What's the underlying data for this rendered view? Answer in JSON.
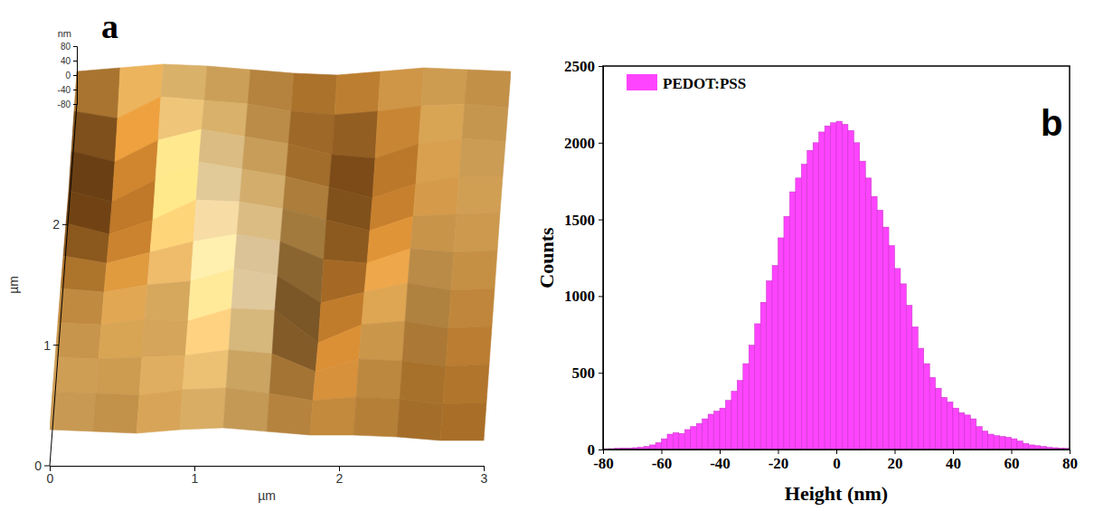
{
  "chart_data": [
    {
      "type": "surface",
      "panel": "a",
      "x_label": "µm",
      "y_label": "µm",
      "z_label": "nm",
      "x": [
        0,
        0.3,
        0.6,
        0.9,
        1.2,
        1.5,
        1.8,
        2.1,
        2.4,
        2.7,
        3
      ],
      "y": [
        0,
        0.3,
        0.6,
        0.9,
        1.2,
        1.5,
        1.8,
        2.1,
        2.4,
        2.7,
        3
      ],
      "heights": [
        [
          20,
          15,
          10,
          20,
          25,
          15,
          5,
          5,
          0,
          -10,
          -10
        ],
        [
          25,
          20,
          15,
          30,
          35,
          20,
          0,
          10,
          5,
          -10,
          -5
        ],
        [
          20,
          15,
          20,
          25,
          40,
          30,
          -20,
          15,
          10,
          -5,
          0
        ],
        [
          15,
          10,
          25,
          20,
          55,
          50,
          -40,
          10,
          20,
          0,
          5
        ],
        [
          10,
          0,
          20,
          30,
          65,
          45,
          -30,
          0,
          25,
          5,
          10
        ],
        [
          0,
          -20,
          10,
          40,
          60,
          40,
          -10,
          -20,
          20,
          10,
          15
        ],
        [
          -10,
          -40,
          0,
          55,
          50,
          30,
          0,
          -30,
          10,
          15,
          20
        ],
        [
          -20,
          -50,
          10,
          60,
          40,
          20,
          -10,
          -40,
          0,
          20,
          20
        ],
        [
          -10,
          -40,
          20,
          50,
          30,
          10,
          -20,
          -30,
          10,
          25,
          15
        ],
        [
          0,
          -20,
          40,
          30,
          20,
          0,
          -10,
          0,
          15,
          20,
          10
        ],
        [
          10,
          20,
          30,
          25,
          15,
          5,
          0,
          10,
          20,
          15,
          10
        ]
      ],
      "xlim": [
        0,
        3
      ],
      "xticks": [
        0,
        1,
        2,
        3
      ],
      "ylim": [
        0,
        3
      ],
      "yticks": [
        0,
        1,
        2
      ],
      "zlim": [
        -80,
        80
      ],
      "zticks": [
        -80,
        -40,
        0,
        40,
        80
      ]
    },
    {
      "type": "histogram",
      "panel": "b",
      "x_label": "Height (nm)",
      "y_label": "Counts",
      "bins": [
        -80,
        -78,
        -76,
        -74,
        -72,
        -70,
        -68,
        -66,
        -64,
        -62,
        -60,
        -58,
        -56,
        -54,
        -52,
        -50,
        -48,
        -46,
        -44,
        -42,
        -40,
        -38,
        -36,
        -34,
        -32,
        -30,
        -28,
        -26,
        -24,
        -22,
        -20,
        -18,
        -16,
        -14,
        -12,
        -10,
        -8,
        -6,
        -4,
        -2,
        0,
        2,
        4,
        6,
        8,
        10,
        12,
        14,
        16,
        18,
        20,
        22,
        24,
        26,
        28,
        30,
        32,
        34,
        36,
        38,
        40,
        42,
        44,
        46,
        48,
        50,
        52,
        54,
        56,
        58,
        60,
        62,
        64,
        66,
        68,
        70,
        72,
        74,
        76,
        78,
        80
      ],
      "series": [
        {
          "name": "PEDOT:PSS",
          "color": "#ff44ff",
          "values": [
            5,
            6,
            8,
            10,
            10,
            12,
            15,
            20,
            30,
            45,
            70,
            100,
            110,
            105,
            130,
            150,
            170,
            200,
            230,
            250,
            270,
            320,
            380,
            450,
            560,
            680,
            820,
            960,
            1100,
            1200,
            1380,
            1520,
            1680,
            1770,
            1860,
            1950,
            2000,
            2070,
            2110,
            2130,
            2140,
            2120,
            2080,
            2000,
            1880,
            1770,
            1650,
            1560,
            1450,
            1330,
            1180,
            1080,
            940,
            800,
            660,
            560,
            470,
            400,
            340,
            310,
            270,
            240,
            225,
            200,
            150,
            120,
            100,
            90,
            85,
            80,
            70,
            55,
            40,
            30,
            25,
            20,
            15,
            12,
            10,
            8
          ]
        }
      ],
      "xlim": [
        -80,
        80
      ],
      "xticks": [
        -80,
        -60,
        -40,
        -20,
        0,
        20,
        40,
        60,
        80
      ],
      "ylim": [
        0,
        2500
      ],
      "yticks": [
        0,
        500,
        1000,
        1500,
        2000,
        2500
      ],
      "legend": "upper left"
    }
  ]
}
